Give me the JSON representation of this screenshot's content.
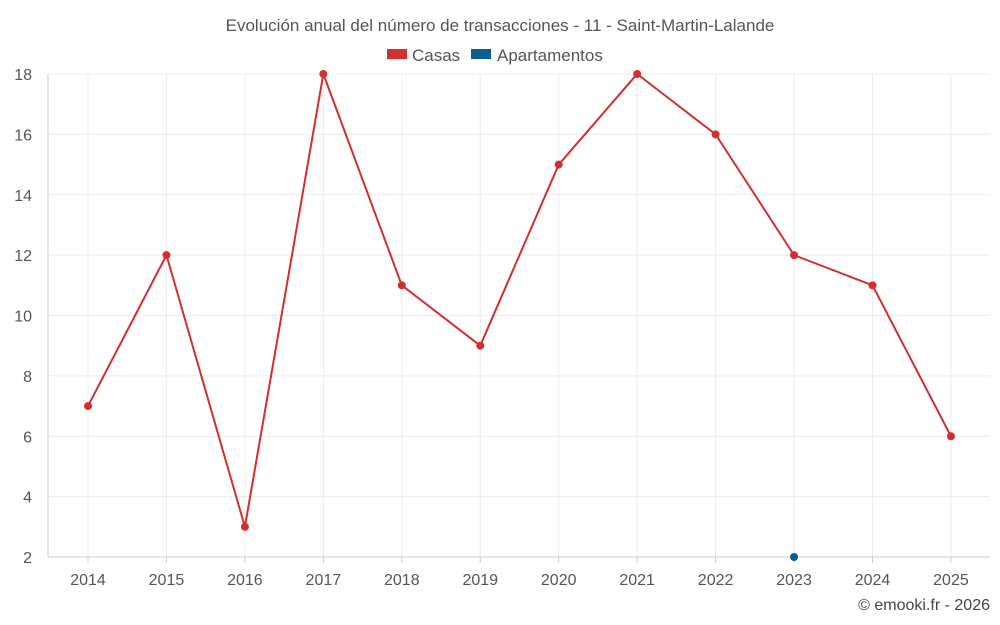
{
  "chart_data": {
    "type": "line",
    "title": "Evolución anual del número de transacciones - 11 - Saint-Martin-Lalande",
    "categories": [
      "2014",
      "2015",
      "2016",
      "2017",
      "2018",
      "2019",
      "2020",
      "2021",
      "2022",
      "2023",
      "2024",
      "2025"
    ],
    "series": [
      {
        "name": "Casas",
        "color": "#d32f2f",
        "values": [
          7,
          12,
          3,
          18,
          11,
          9,
          15,
          18,
          16,
          12,
          11,
          6
        ]
      },
      {
        "name": "Apartamentos",
        "color": "#0b5f95",
        "values": [
          null,
          null,
          null,
          null,
          null,
          null,
          null,
          null,
          null,
          2,
          null,
          null
        ]
      }
    ],
    "y_ticks": [
      2,
      4,
      6,
      8,
      10,
      12,
      14,
      16,
      18
    ],
    "ylim": [
      2,
      18
    ],
    "grid": true,
    "legend_position": "top-center",
    "xlabel": "",
    "ylabel": ""
  },
  "credit": "© emooki.fr - 2026"
}
